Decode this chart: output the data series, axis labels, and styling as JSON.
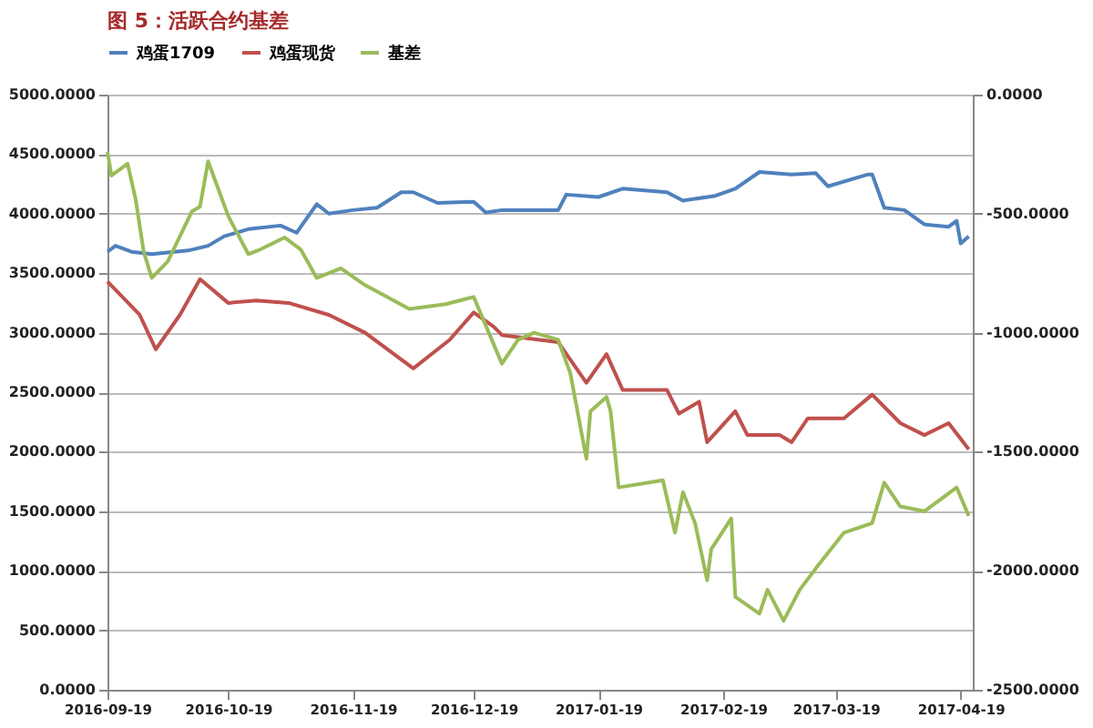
{
  "chart_data": {
    "type": "line",
    "title": "图 5：活跃合约基差",
    "xlim": [
      "2016-09-19",
      "2017-04-22"
    ],
    "xticks": [
      "2016-09-19",
      "2016-10-19",
      "2016-11-19",
      "2016-12-19",
      "2017-01-19",
      "2017-02-19",
      "2017-03-19",
      "2017-04-19"
    ],
    "ylim": [
      0,
      5000
    ],
    "yticks": [
      {
        "value": 0,
        "label": "0.0000"
      },
      {
        "value": 500,
        "label": "500.0000"
      },
      {
        "value": 1000,
        "label": "1000.0000"
      },
      {
        "value": 1500,
        "label": "1500.0000"
      },
      {
        "value": 2000,
        "label": "2000.0000"
      },
      {
        "value": 2500,
        "label": "2500.0000"
      },
      {
        "value": 3000,
        "label": "3000.0000"
      },
      {
        "value": 3500,
        "label": "3500.0000"
      },
      {
        "value": 4000,
        "label": "4000.0000"
      },
      {
        "value": 4500,
        "label": "4500.0000"
      },
      {
        "value": 5000,
        "label": "5000.0000"
      }
    ],
    "y2lim": [
      -2500,
      0
    ],
    "y2ticks": [
      {
        "value": -2500,
        "label": "-2500.0000"
      },
      {
        "value": -2000,
        "label": "-2000.0000"
      },
      {
        "value": -1500,
        "label": "-1500.0000"
      },
      {
        "value": -1000,
        "label": "-1000.0000"
      },
      {
        "value": -500,
        "label": "-500.0000"
      },
      {
        "value": 0,
        "label": "0.0000"
      }
    ],
    "grid": "y",
    "legend": "top",
    "marker": "none",
    "line_style": "solid",
    "series": [
      {
        "name": "鸡蛋1709",
        "color": "#4f81bd",
        "x": [
          "2016-09-19",
          "2016-09-21",
          "2016-09-25",
          "2016-09-30",
          "2016-10-09",
          "2016-10-14",
          "2016-10-18",
          "2016-10-24",
          "2016-11-01",
          "2016-11-05",
          "2016-11-10",
          "2016-11-13",
          "2016-11-19",
          "2016-11-25",
          "2016-12-01",
          "2016-12-04",
          "2016-12-10",
          "2016-12-19",
          "2016-12-22",
          "2016-12-26",
          "2017-01-03",
          "2017-01-09",
          "2017-01-11",
          "2017-01-19",
          "2017-01-25",
          "2017-02-05",
          "2017-02-09",
          "2017-02-17",
          "2017-02-22",
          "2017-02-28",
          "2017-03-08",
          "2017-03-14",
          "2017-03-17",
          "2017-03-27",
          "2017-03-28",
          "2017-03-31",
          "2017-04-05",
          "2017-04-10",
          "2017-04-16",
          "2017-04-18",
          "2017-04-19",
          "2017-04-21"
        ],
        "values": [
          3680,
          3730,
          3680,
          3660,
          3690,
          3730,
          3810,
          3870,
          3900,
          3840,
          4080,
          4000,
          4030,
          4050,
          4180,
          4180,
          4090,
          4100,
          4010,
          4030,
          4030,
          4030,
          4160,
          4140,
          4210,
          4180,
          4110,
          4150,
          4210,
          4350,
          4330,
          4340,
          4230,
          4330,
          4330,
          4050,
          4030,
          3910,
          3890,
          3940,
          3750,
          3810
        ]
      },
      {
        "name": "鸡蛋现货",
        "color": "#c0504d",
        "x": [
          "2016-09-19",
          "2016-09-27",
          "2016-10-01",
          "2016-10-07",
          "2016-10-12",
          "2016-10-19",
          "2016-10-26",
          "2016-11-03",
          "2016-11-13",
          "2016-11-22",
          "2016-12-04",
          "2016-12-13",
          "2016-12-19",
          "2016-12-24",
          "2016-12-26",
          "2017-01-09",
          "2017-01-16",
          "2017-01-21",
          "2017-01-25",
          "2017-02-05",
          "2017-02-08",
          "2017-02-13",
          "2017-02-15",
          "2017-02-22",
          "2017-02-25",
          "2017-03-05",
          "2017-03-08",
          "2017-03-12",
          "2017-03-21",
          "2017-03-28",
          "2017-04-04",
          "2017-04-10",
          "2017-04-16",
          "2017-04-21"
        ],
        "values": [
          3430,
          3150,
          2860,
          3150,
          3450,
          3250,
          3270,
          3250,
          3150,
          3000,
          2700,
          2940,
          3170,
          3050,
          2980,
          2920,
          2580,
          2820,
          2520,
          2520,
          2320,
          2420,
          2080,
          2340,
          2140,
          2140,
          2080,
          2280,
          2280,
          2480,
          2240,
          2140,
          2240,
          2020
        ]
      },
      {
        "name": "基差",
        "color": "#9bbb59",
        "axis": "y2",
        "x": [
          "2016-09-19",
          "2016-09-20",
          "2016-09-24",
          "2016-09-26",
          "2016-09-28",
          "2016-09-30",
          "2016-10-04",
          "2016-10-10",
          "2016-10-12",
          "2016-10-14",
          "2016-10-19",
          "2016-10-24",
          "2016-10-27",
          "2016-11-02",
          "2016-11-06",
          "2016-11-10",
          "2016-11-16",
          "2016-11-22",
          "2016-12-03",
          "2016-12-12",
          "2016-12-19",
          "2016-12-26",
          "2016-12-30",
          "2017-01-03",
          "2017-01-09",
          "2017-01-12",
          "2017-01-16",
          "2017-01-17",
          "2017-01-21",
          "2017-01-22",
          "2017-01-24",
          "2017-02-04",
          "2017-02-07",
          "2017-02-09",
          "2017-02-12",
          "2017-02-15",
          "2017-02-16",
          "2017-02-21",
          "2017-02-22",
          "2017-02-28",
          "2017-03-02",
          "2017-03-06",
          "2017-03-10",
          "2017-03-14",
          "2017-03-21",
          "2017-03-28",
          "2017-03-31",
          "2017-04-04",
          "2017-04-10",
          "2017-04-18",
          "2017-04-21"
        ],
        "values": [
          -240,
          -340,
          -290,
          -440,
          -660,
          -770,
          -700,
          -490,
          -470,
          -280,
          -510,
          -670,
          -650,
          -600,
          -650,
          -770,
          -730,
          -800,
          -900,
          -880,
          -850,
          -1130,
          -1030,
          -1000,
          -1030,
          -1170,
          -1530,
          -1330,
          -1270,
          -1330,
          -1650,
          -1620,
          -1840,
          -1670,
          -1800,
          -2040,
          -1910,
          -1780,
          -2110,
          -2180,
          -2080,
          -2210,
          -2080,
          -1990,
          -1840,
          -1800,
          -1630,
          -1730,
          -1750,
          -1650,
          -1770
        ]
      }
    ]
  }
}
